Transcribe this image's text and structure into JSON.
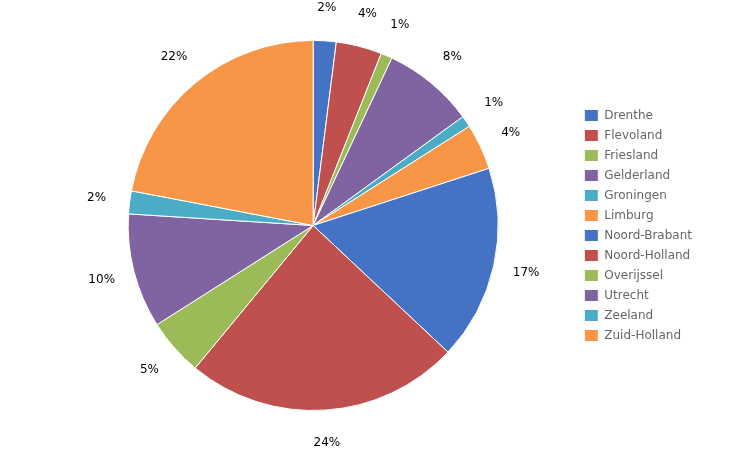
{
  "chart_data": {
    "type": "pie",
    "categories": [
      "Drenthe",
      "Flevoland",
      "Friesland",
      "Gelderland",
      "Groningen",
      "Limburg",
      "Noord-Brabant",
      "Noord-Holland",
      "Overijssel",
      "Utrecht",
      "Zeeland",
      "Zuid-Holland"
    ],
    "values": [
      2,
      4,
      1,
      8,
      1,
      4,
      17,
      24,
      5,
      10,
      2,
      22
    ],
    "value_labels": [
      "2%",
      "4%",
      "1%",
      "8%",
      "1%",
      "4%",
      "17%",
      "24%",
      "5%",
      "10%",
      "2%",
      "22%"
    ],
    "colors": [
      "#4472C4",
      "#C0504D",
      "#9BBB59",
      "#8064A2",
      "#4BACC6",
      "#F79646",
      "#4472C4",
      "#C0504D",
      "#9BBB59",
      "#8064A2",
      "#4BACC6",
      "#F79646"
    ],
    "data_labels": true,
    "legend": "right"
  }
}
